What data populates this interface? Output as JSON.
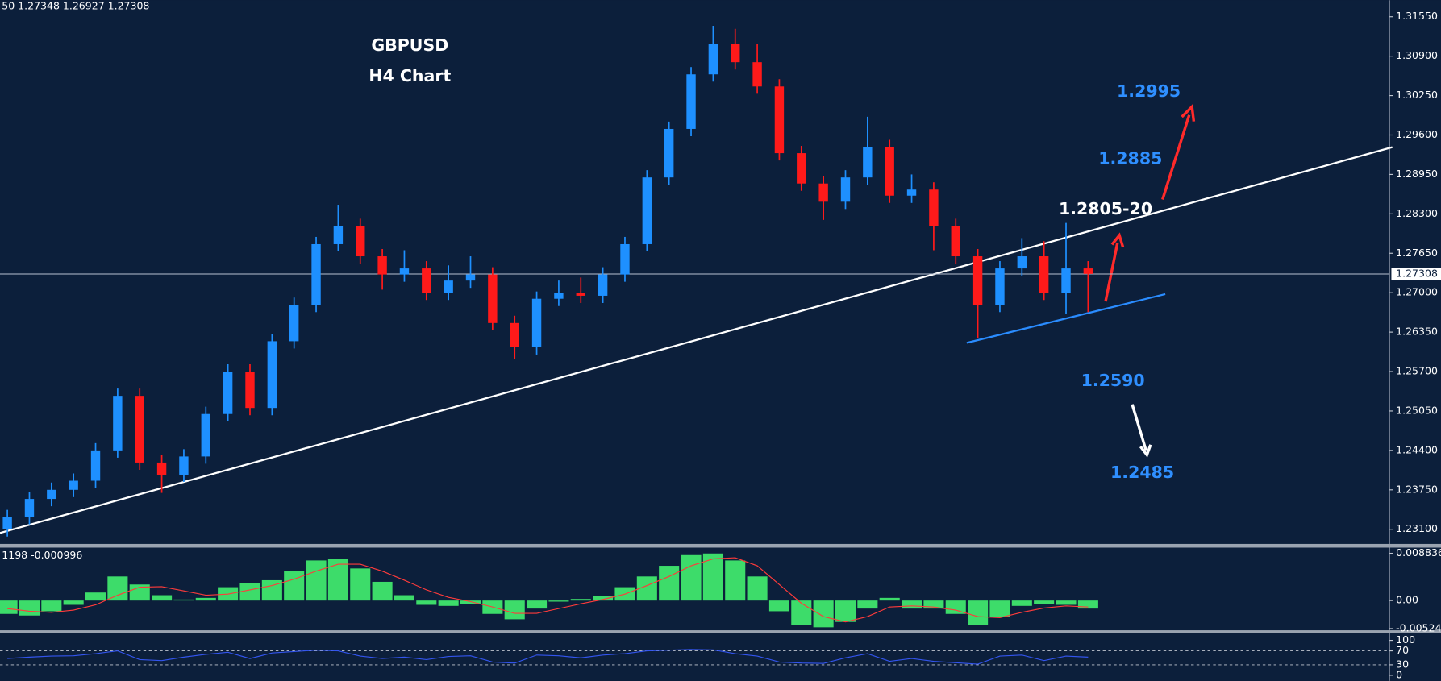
{
  "chart_data": [
    {
      "type": "candlestick",
      "header": "50 1.27348 1.26927 1.27308",
      "annotations": [
        "GBPUSD",
        "H4 Chart",
        "1.2995",
        "1.2885",
        "1.2805-20",
        "1.2590",
        "1.2485"
      ],
      "up_color": "#1e90ff",
      "down_color": "#ff1a1a",
      "open": [
        1.231,
        1.233,
        1.236,
        1.2375,
        1.239,
        1.244,
        1.253,
        1.242,
        1.24,
        1.243,
        1.25,
        1.257,
        1.251,
        1.262,
        1.268,
        1.278,
        1.281,
        1.276,
        1.273,
        1.274,
        1.27,
        1.272,
        1.273,
        1.265,
        1.261,
        1.269,
        1.27,
        1.2695,
        1.273,
        1.278,
        1.289,
        1.297,
        1.306,
        1.311,
        1.308,
        1.304,
        1.293,
        1.288,
        1.285,
        1.289,
        1.294,
        1.286,
        1.287,
        1.281,
        1.276,
        1.268,
        1.274,
        1.276,
        1.27,
        1.274
      ],
      "high": [
        1.2342,
        1.2372,
        1.2387,
        1.2402,
        1.2452,
        1.2542,
        1.2542,
        1.2432,
        1.2442,
        1.2512,
        1.2582,
        1.2582,
        1.2632,
        1.2692,
        1.2792,
        1.2845,
        1.2822,
        1.2772,
        1.277,
        1.2752,
        1.2745,
        1.276,
        1.2742,
        1.2662,
        1.2702,
        1.272,
        1.2725,
        1.2742,
        1.2792,
        1.2902,
        1.2982,
        1.3072,
        1.314,
        1.3135,
        1.311,
        1.3052,
        1.2942,
        1.2892,
        1.2902,
        1.299,
        1.2952,
        1.2895,
        1.2882,
        1.2822,
        1.2772,
        1.2752,
        1.279,
        1.2785,
        1.2815,
        1.2752
      ],
      "low": [
        1.2298,
        1.2318,
        1.2348,
        1.2363,
        1.2378,
        1.2428,
        1.2408,
        1.237,
        1.2388,
        1.2418,
        1.2488,
        1.2498,
        1.2498,
        1.2608,
        1.2668,
        1.2768,
        1.2748,
        1.2705,
        1.2718,
        1.2688,
        1.2688,
        1.2708,
        1.2638,
        1.259,
        1.2598,
        1.2678,
        1.2683,
        1.2683,
        1.2718,
        1.2768,
        1.2878,
        1.2958,
        1.3048,
        1.3068,
        1.3028,
        1.2918,
        1.2868,
        1.282,
        1.2838,
        1.2878,
        1.2848,
        1.2848,
        1.277,
        1.2748,
        1.2625,
        1.2668,
        1.2728,
        1.2688,
        1.2665,
        1.2668
      ],
      "close": [
        1.233,
        1.236,
        1.2375,
        1.239,
        1.244,
        1.253,
        1.242,
        1.24,
        1.243,
        1.25,
        1.257,
        1.251,
        1.262,
        1.268,
        1.278,
        1.281,
        1.276,
        1.273,
        1.274,
        1.27,
        1.272,
        1.273,
        1.265,
        1.261,
        1.269,
        1.27,
        1.2695,
        1.273,
        1.278,
        1.289,
        1.297,
        1.306,
        1.311,
        1.308,
        1.304,
        1.293,
        1.288,
        1.285,
        1.289,
        1.294,
        1.286,
        1.287,
        1.281,
        1.276,
        1.268,
        1.274,
        1.276,
        1.27,
        1.274,
        1.2731
      ],
      "last_price": 1.27308,
      "ylim": [
        1.22858,
        1.31822
      ],
      "yticks": [
        {
          "value": 1.3155,
          "label": "1.31550"
        },
        {
          "value": 1.309,
          "label": "1.30900"
        },
        {
          "value": 1.3025,
          "label": "1.30250"
        },
        {
          "value": 1.296,
          "label": "1.29600"
        },
        {
          "value": 1.2895,
          "label": "1.28950"
        },
        {
          "value": 1.283,
          "label": "1.28300"
        },
        {
          "value": 1.2765,
          "label": "1.27650"
        },
        {
          "value": 1.27,
          "label": "1.27000"
        },
        {
          "value": 1.2635,
          "label": "1.26350"
        },
        {
          "value": 1.257,
          "label": "1.25700"
        },
        {
          "value": 1.2505,
          "label": "1.25050"
        },
        {
          "value": 1.244,
          "label": "1.24400"
        },
        {
          "value": 1.2375,
          "label": "1.23750"
        },
        {
          "value": 1.231,
          "label": "1.23100"
        }
      ]
    },
    {
      "type": "macd",
      "header": "1198 -0.000996",
      "series": [
        {
          "type": "bar",
          "color": "#3ddc6a",
          "values": [
            -0.0025,
            -0.0028,
            -0.002,
            -0.0008,
            0.0015,
            0.0045,
            0.003,
            0.001,
            0.0002,
            0.0005,
            0.0025,
            0.0032,
            0.0038,
            0.0055,
            0.0075,
            0.0078,
            0.006,
            0.0035,
            0.001,
            -0.0008,
            -0.001,
            -0.0006,
            -0.0025,
            -0.0035,
            -0.0015,
            -0.0002,
            0.0003,
            0.0008,
            0.0025,
            0.0045,
            0.0065,
            0.0085,
            0.0088,
            0.0075,
            0.0045,
            -0.002,
            -0.0045,
            -0.005,
            -0.004,
            -0.0015,
            0.0005,
            -0.0015,
            -0.0015,
            -0.0025,
            -0.0045,
            -0.003,
            -0.001,
            -0.0006,
            -0.0008,
            -0.0015
          ]
        },
        {
          "type": "line",
          "color": "#ff3b3b",
          "values": [
            -0.0015,
            -0.002,
            -0.0022,
            -0.0018,
            -0.0008,
            0.001,
            0.0025,
            0.0026,
            0.0018,
            0.001,
            0.0012,
            0.002,
            0.0028,
            0.004,
            0.0055,
            0.0068,
            0.0068,
            0.0055,
            0.0038,
            0.002,
            0.0006,
            -0.0002,
            -0.0012,
            -0.0024,
            -0.0024,
            -0.0015,
            -0.0006,
            0.0002,
            0.0012,
            0.0028,
            0.0045,
            0.0065,
            0.0078,
            0.008,
            0.0065,
            0.003,
            -0.0005,
            -0.003,
            -0.004,
            -0.003,
            -0.0012,
            -0.001,
            -0.0012,
            -0.0018,
            -0.003,
            -0.0032,
            -0.0022,
            -0.0014,
            -0.001,
            -0.0012
          ]
        }
      ],
      "ylim": [
        -0.00556,
        0.009897
      ],
      "yticks": [
        0.008836,
        {
          "value": 0,
          "label": "0.00"
        },
        -0.00524
      ]
    },
    {
      "type": "line",
      "color": "#3355ee",
      "values": [
        48,
        52,
        55,
        56,
        62,
        70,
        45,
        42,
        52,
        60,
        66,
        48,
        64,
        68,
        72,
        70,
        55,
        48,
        52,
        45,
        54,
        56,
        38,
        35,
        58,
        56,
        50,
        58,
        62,
        70,
        72,
        74,
        73,
        62,
        55,
        38,
        35,
        34,
        50,
        62,
        40,
        48,
        40,
        36,
        32,
        55,
        58,
        42,
        55,
        52
      ],
      "ylim": [
        -15.8,
        121
      ],
      "yticks": [
        100,
        70,
        30,
        0
      ],
      "levels": [
        70,
        30
      ]
    }
  ]
}
